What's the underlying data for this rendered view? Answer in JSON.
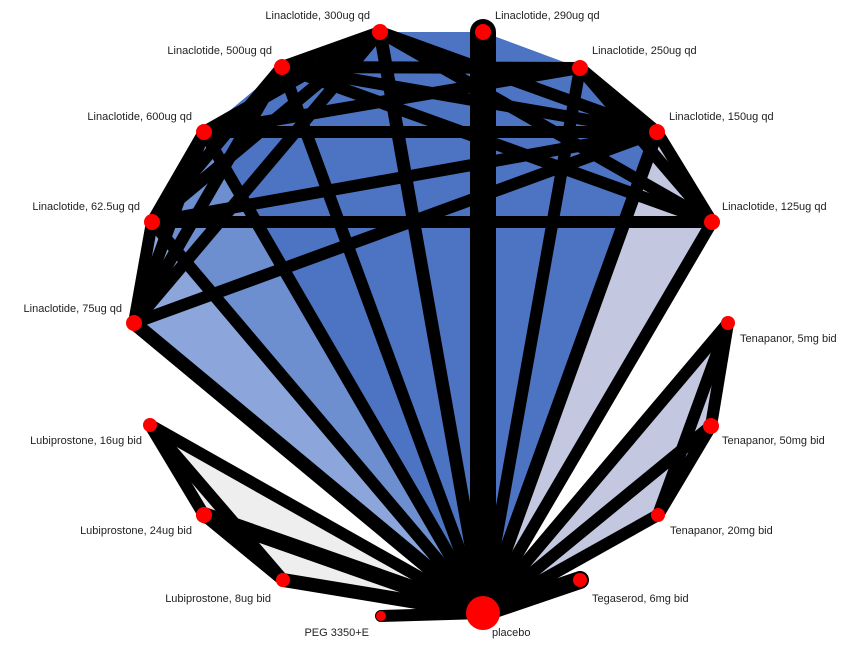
{
  "diagram": {
    "type": "network-meta-analysis",
    "colors": {
      "edge": "#000000",
      "node": "#ff0000",
      "label": "#222222",
      "loop_strong": "#4d73c3",
      "loop_medium": "#6d8fd0",
      "loop_light": "#8ca6db",
      "loop_pale": "#c3c8e0",
      "loop_grey": "#eeeeee"
    },
    "nodes": [
      {
        "id": "lin290",
        "label": "Linaclotide, 290ug qd"
      },
      {
        "id": "lin300",
        "label": "Linaclotide, 300ug qd"
      },
      {
        "id": "lin250",
        "label": "Linaclotide, 250ug qd"
      },
      {
        "id": "lin500",
        "label": "Linaclotide, 500ug qd"
      },
      {
        "id": "lin150",
        "label": "Linaclotide, 150ug qd"
      },
      {
        "id": "lin600",
        "label": "Linaclotide, 600ug qd"
      },
      {
        "id": "lin125",
        "label": "Linaclotide, 125ug qd"
      },
      {
        "id": "lin625",
        "label": "Linaclotide, 62.5ug qd"
      },
      {
        "id": "lin75",
        "label": "Linaclotide, 75ug qd"
      },
      {
        "id": "ten5",
        "label": "Tenapanor, 5mg bid"
      },
      {
        "id": "lub16",
        "label": "Lubiprostone, 16ug bid"
      },
      {
        "id": "ten50",
        "label": "Tenapanor, 50mg bid"
      },
      {
        "id": "lub24",
        "label": "Lubiprostone, 24ug bid"
      },
      {
        "id": "ten20",
        "label": "Tenapanor, 20mg bid"
      },
      {
        "id": "lub8",
        "label": "Lubiprostone, 8ug bid"
      },
      {
        "id": "teg6",
        "label": "Tegaserod, 6mg bid"
      },
      {
        "id": "peg",
        "label": "PEG 3350+E"
      },
      {
        "id": "placebo",
        "label": "placebo"
      }
    ],
    "edges": [
      {
        "a": "placebo",
        "b": "lin290",
        "w": 26
      },
      {
        "a": "placebo",
        "b": "lin300",
        "w": 13
      },
      {
        "a": "placebo",
        "b": "lin250",
        "w": 12
      },
      {
        "a": "placebo",
        "b": "lin500",
        "w": 12
      },
      {
        "a": "placebo",
        "b": "lin150",
        "w": 13
      },
      {
        "a": "placebo",
        "b": "lin600",
        "w": 12
      },
      {
        "a": "placebo",
        "b": "lin125",
        "w": 12
      },
      {
        "a": "placebo",
        "b": "lin625",
        "w": 12
      },
      {
        "a": "placebo",
        "b": "lin75",
        "w": 14
      },
      {
        "a": "placebo",
        "b": "lub16",
        "w": 12
      },
      {
        "a": "placebo",
        "b": "lub24",
        "w": 16
      },
      {
        "a": "placebo",
        "b": "lub8",
        "w": 14
      },
      {
        "a": "placebo",
        "b": "ten5",
        "w": 12
      },
      {
        "a": "placebo",
        "b": "ten50",
        "w": 12
      },
      {
        "a": "placebo",
        "b": "ten20",
        "w": 12
      },
      {
        "a": "placebo",
        "b": "teg6",
        "w": 18
      },
      {
        "a": "placebo",
        "b": "peg",
        "w": 12
      },
      {
        "a": "lin300",
        "b": "lin500",
        "w": 12
      },
      {
        "a": "lin300",
        "b": "lin600",
        "w": 12
      },
      {
        "a": "lin300",
        "b": "lin625",
        "w": 12
      },
      {
        "a": "lin300",
        "b": "lin150",
        "w": 12
      },
      {
        "a": "lin300",
        "b": "lin125",
        "w": 12
      },
      {
        "a": "lin300",
        "b": "lin75",
        "w": 12
      },
      {
        "a": "lin500",
        "b": "lin250",
        "w": 12
      },
      {
        "a": "lin500",
        "b": "lin150",
        "w": 12
      },
      {
        "a": "lin500",
        "b": "lin125",
        "w": 12
      },
      {
        "a": "lin500",
        "b": "lin625",
        "w": 12
      },
      {
        "a": "lin500",
        "b": "lin75",
        "w": 12
      },
      {
        "a": "lin600",
        "b": "lin150",
        "w": 12
      },
      {
        "a": "lin600",
        "b": "lin250",
        "w": 12
      },
      {
        "a": "lin600",
        "b": "lin75",
        "w": 12
      },
      {
        "a": "lin600",
        "b": "lin625",
        "w": 12
      },
      {
        "a": "lin625",
        "b": "lin125",
        "w": 12
      },
      {
        "a": "lin625",
        "b": "lin150",
        "w": 12
      },
      {
        "a": "lin625",
        "b": "lin75",
        "w": 12
      },
      {
        "a": "lin75",
        "b": "lin150",
        "w": 12
      },
      {
        "a": "lin250",
        "b": "lin150",
        "w": 12
      },
      {
        "a": "lin250",
        "b": "lin125",
        "w": 12
      },
      {
        "a": "lin150",
        "b": "lin125",
        "w": 12
      },
      {
        "a": "lub16",
        "b": "lub24",
        "w": 12
      },
      {
        "a": "lub16",
        "b": "lub8",
        "w": 12
      },
      {
        "a": "lub24",
        "b": "lub8",
        "w": 12
      },
      {
        "a": "ten5",
        "b": "ten50",
        "w": 12
      },
      {
        "a": "ten5",
        "b": "ten20",
        "w": 12
      },
      {
        "a": "ten50",
        "b": "ten20",
        "w": 12
      }
    ],
    "loops": [
      {
        "nodes": [
          "placebo",
          "lin75",
          "lin625"
        ],
        "shade": "loop_light"
      },
      {
        "nodes": [
          "placebo",
          "lin625",
          "lin600"
        ],
        "shade": "loop_medium"
      },
      {
        "nodes": [
          "placebo",
          "lin600",
          "lin500"
        ],
        "shade": "loop_strong"
      },
      {
        "nodes": [
          "placebo",
          "lin500",
          "lin300"
        ],
        "shade": "loop_strong"
      },
      {
        "nodes": [
          "placebo",
          "lin300",
          "lin290"
        ],
        "shade": "loop_strong"
      },
      {
        "nodes": [
          "placebo",
          "lin290",
          "lin250"
        ],
        "shade": "loop_strong"
      },
      {
        "nodes": [
          "placebo",
          "lin250",
          "lin150"
        ],
        "shade": "loop_strong"
      },
      {
        "nodes": [
          "placebo",
          "lin150",
          "lin125"
        ],
        "shade": "loop_medium"
      },
      {
        "nodes": [
          "placebo",
          "lin125",
          "lin150"
        ],
        "shade": "loop_pale"
      },
      {
        "nodes": [
          "placebo",
          "lub16",
          "lub24"
        ],
        "shade": "loop_grey"
      },
      {
        "nodes": [
          "placebo",
          "lub24",
          "lub8"
        ],
        "shade": "loop_grey"
      },
      {
        "nodes": [
          "placebo",
          "ten5",
          "ten50"
        ],
        "shade": "loop_pale"
      },
      {
        "nodes": [
          "placebo",
          "ten50",
          "ten20"
        ],
        "shade": "loop_pale"
      }
    ]
  }
}
